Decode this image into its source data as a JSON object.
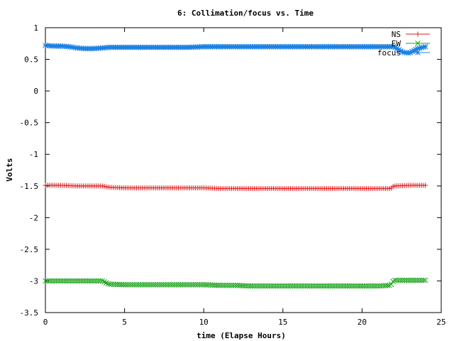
{
  "chart_data": {
    "type": "scatter",
    "title": "6: Collimation/focus vs. Time",
    "xlabel": "time (Elapse Hours)",
    "ylabel": "Volts",
    "xlim": [
      0,
      25
    ],
    "ylim": [
      -3.5,
      1
    ],
    "xticks": [
      0,
      5,
      10,
      15,
      20,
      25
    ],
    "yticks": [
      1,
      0.5,
      0,
      -0.5,
      -1,
      -1.5,
      -2,
      -2.5,
      -3,
      -3.5
    ],
    "xtick_labels": [
      "0",
      "5",
      "10",
      "15",
      "20",
      "25"
    ],
    "ytick_labels": [
      "1",
      "0.5",
      "0",
      "-0.5",
      "-1",
      "-1.5",
      "-2",
      "-2.5",
      "-3",
      "-3.5"
    ],
    "grid": false,
    "legend_position": "top-right",
    "colors": {
      "NS": "#e31a1c",
      "EW": "#1aa31a",
      "focus": "#1a7fe3"
    },
    "series": [
      {
        "name": "NS",
        "marker": "plus",
        "color": "#e31a1c",
        "x": [
          0,
          1,
          2,
          3,
          3.6,
          4,
          5,
          6,
          7,
          8,
          9,
          10,
          11,
          12,
          13,
          14,
          15,
          16,
          17,
          18,
          19,
          20,
          21,
          21.8,
          22,
          23,
          24
        ],
        "y": [
          -1.49,
          -1.49,
          -1.5,
          -1.5,
          -1.5,
          -1.52,
          -1.53,
          -1.53,
          -1.53,
          -1.53,
          -1.53,
          -1.53,
          -1.54,
          -1.54,
          -1.54,
          -1.54,
          -1.54,
          -1.54,
          -1.54,
          -1.54,
          -1.54,
          -1.54,
          -1.54,
          -1.54,
          -1.5,
          -1.49,
          -1.49
        ]
      },
      {
        "name": "EW",
        "marker": "cross",
        "color": "#1aa31a",
        "x": [
          0,
          1,
          2,
          3,
          3.6,
          4,
          5,
          6,
          7,
          8,
          9,
          10,
          11,
          12,
          13,
          14,
          15,
          16,
          17,
          18,
          19,
          20,
          21,
          21.8,
          22,
          23,
          24
        ],
        "y": [
          -3.0,
          -3.0,
          -3.0,
          -3.0,
          -3.0,
          -3.05,
          -3.06,
          -3.06,
          -3.06,
          -3.06,
          -3.06,
          -3.06,
          -3.07,
          -3.07,
          -3.08,
          -3.08,
          -3.08,
          -3.08,
          -3.08,
          -3.08,
          -3.08,
          -3.08,
          -3.08,
          -3.07,
          -2.99,
          -2.99,
          -2.99
        ]
      },
      {
        "name": "focus",
        "marker": "star",
        "color": "#1a7fe3",
        "x": [
          0,
          0.5,
          1,
          1.5,
          2,
          2.5,
          3,
          3.6,
          4,
          5,
          6,
          7,
          8,
          9,
          10,
          11,
          12,
          13,
          14,
          15,
          16,
          17,
          18,
          19,
          20,
          21,
          22,
          22.6,
          23,
          23.5,
          24
        ],
        "y": [
          0.72,
          0.71,
          0.71,
          0.7,
          0.68,
          0.67,
          0.67,
          0.68,
          0.69,
          0.69,
          0.69,
          0.69,
          0.69,
          0.69,
          0.7,
          0.7,
          0.7,
          0.7,
          0.7,
          0.7,
          0.7,
          0.7,
          0.7,
          0.7,
          0.7,
          0.7,
          0.7,
          0.61,
          0.6,
          0.67,
          0.7
        ]
      }
    ]
  }
}
